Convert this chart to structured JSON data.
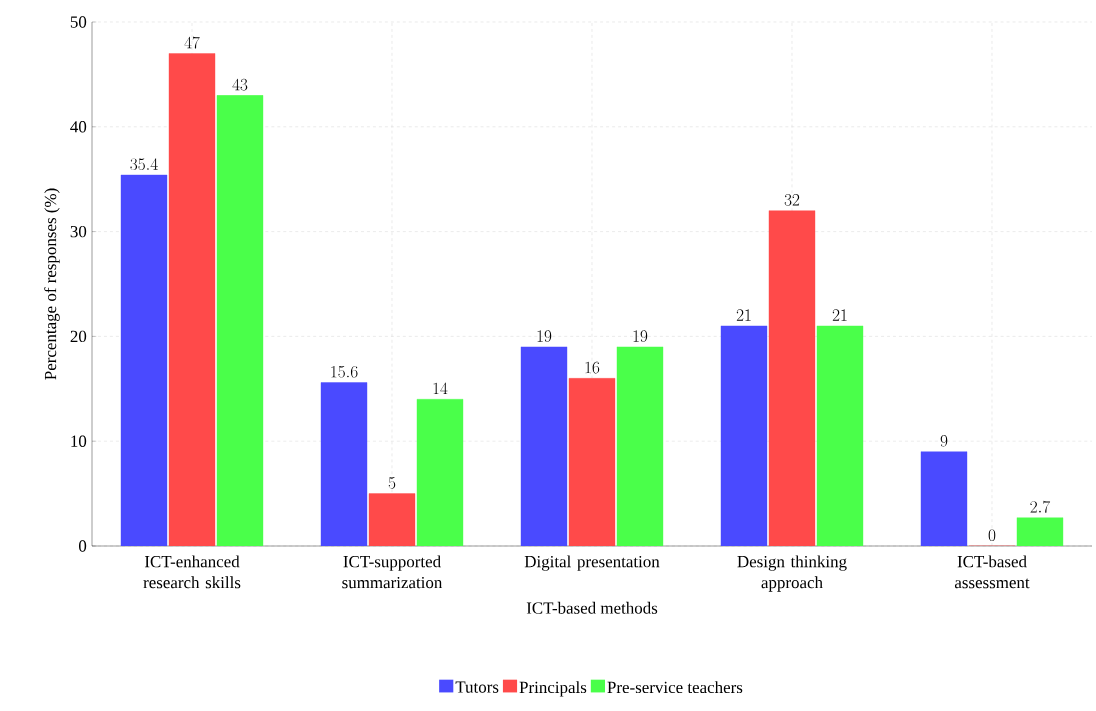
{
  "chart_data": {
    "type": "bar",
    "xlabel": "ICT-based methods",
    "ylabel": "Percentage of responses (%)",
    "categories": [
      "ICT-enhanced research skills",
      "ICT-supported summarization",
      "Digital presentation",
      "Design thinking approach",
      "ICT-based assessment"
    ],
    "series": [
      {
        "name": "Tutors",
        "color": "#4a4aff",
        "values": [
          35.4,
          15.6,
          19,
          21,
          9
        ]
      },
      {
        "name": "Principals",
        "color": "#ff4a4a",
        "values": [
          47,
          5,
          16,
          32,
          0
        ]
      },
      {
        "name": "Pre-service teachers",
        "color": "#4aff4a",
        "values": [
          43,
          14,
          19,
          21,
          2.7
        ]
      }
    ],
    "ylim": [
      0,
      50
    ],
    "yticks": [
      0,
      10,
      20,
      30,
      40,
      50
    ],
    "grid": true,
    "legend": "bottom",
    "data_labels": true
  }
}
